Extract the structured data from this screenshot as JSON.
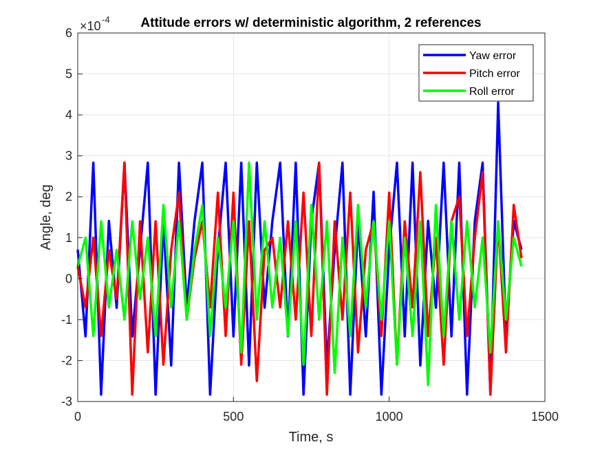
{
  "chart_data": {
    "type": "line",
    "title": "Attitude errors w/ deterministic algorithm, 2 references",
    "x_label": "Time, s",
    "y_label": "Angle, deg",
    "y_multiplier": {
      "base": "×10",
      "exponent": "-4"
    },
    "x": [
      0,
      25,
      50,
      75,
      100,
      125,
      150,
      175,
      200,
      225,
      250,
      275,
      300,
      325,
      350,
      375,
      400,
      425,
      450,
      475,
      500,
      525,
      550,
      575,
      600,
      625,
      650,
      675,
      700,
      725,
      750,
      775,
      800,
      825,
      850,
      875,
      900,
      925,
      950,
      975,
      1000,
      1025,
      1050,
      1075,
      1100,
      1125,
      1150,
      1175,
      1200,
      1225,
      1250,
      1275,
      1300,
      1325,
      1350,
      1375,
      1400,
      1425
    ],
    "series": [
      {
        "name": "Yaw error",
        "color": "#0000ff",
        "values": [
          0.71,
          -1.41,
          2.83,
          -2.83,
          1.41,
          -0.71,
          2.83,
          -1.41,
          0.71,
          2.83,
          -2.83,
          1.41,
          -2.12,
          2.83,
          -0.71,
          1.41,
          2.83,
          -2.83,
          0.71,
          2.83,
          -1.41,
          2.83,
          -2.12,
          2.83,
          -0.71,
          1.41,
          2.83,
          -1.41,
          2.83,
          -2.83,
          1.41,
          2.83,
          -2.12,
          0.71,
          2.83,
          -2.83,
          1.41,
          -1.41,
          2.12,
          -2.83,
          0.71,
          2.83,
          -1.41,
          2.83,
          -2.12,
          1.41,
          -0.71,
          2.83,
          -1.41,
          2.83,
          -2.83,
          1.41,
          2.83,
          -2.83,
          4.3,
          -1.41,
          1.41,
          0.71
        ]
      },
      {
        "name": "Pitch error",
        "color": "#ff0000",
        "values": [
          0.3,
          -0.7,
          1.0,
          -1.4,
          0.7,
          -0.5,
          2.83,
          -2.83,
          1.4,
          -1.8,
          1.4,
          -2.1,
          0.7,
          2.1,
          -1.0,
          0.5,
          1.4,
          -0.7,
          2.1,
          -1.4,
          2.1,
          -2.1,
          1.4,
          -2.5,
          0.7,
          1.0,
          -0.7,
          1.4,
          -1.0,
          2.1,
          -1.4,
          2.83,
          -2.83,
          1.4,
          -1.0,
          2.1,
          -1.8,
          0.7,
          1.4,
          -1.4,
          2.1,
          -2.1,
          1.4,
          -0.7,
          2.6,
          -1.4,
          1.0,
          -2.1,
          1.4,
          2.0,
          -1.4,
          1.0,
          2.6,
          -2.83,
          1.4,
          -1.8,
          1.8,
          0.5
        ]
      },
      {
        "name": "Roll error",
        "color": "#00ff00",
        "values": [
          0.3,
          1.0,
          -1.4,
          1.4,
          -0.7,
          0.7,
          -1.0,
          1.4,
          -0.5,
          1.0,
          -1.4,
          1.8,
          -0.7,
          1.4,
          -1.0,
          0.7,
          1.8,
          -1.4,
          1.0,
          -0.7,
          1.4,
          -1.8,
          2.83,
          -1.0,
          1.4,
          -0.7,
          1.0,
          -1.4,
          1.4,
          -2.1,
          1.8,
          -1.0,
          1.4,
          -2.3,
          1.0,
          -1.4,
          1.8,
          -0.7,
          1.4,
          -1.0,
          1.4,
          -2.1,
          1.0,
          -1.4,
          1.4,
          -2.6,
          1.8,
          -1.4,
          1.4,
          -1.0,
          1.4,
          -0.7,
          1.0,
          -1.8,
          1.4,
          -1.0,
          1.0,
          0.3
        ]
      }
    ],
    "xlim": [
      0,
      1500
    ],
    "xticks": [
      0,
      500,
      1000,
      1500
    ],
    "ylim": [
      -3,
      6
    ],
    "yticks": [
      -3,
      -2,
      -1,
      0,
      1,
      2,
      3,
      4,
      5,
      6
    ],
    "grid": true,
    "legend": "northeast"
  }
}
